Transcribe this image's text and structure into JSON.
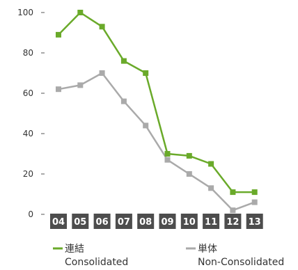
{
  "chart_data": {
    "type": "line",
    "title": "",
    "xlabel": "",
    "ylabel": "",
    "categories": [
      "04",
      "05",
      "06",
      "07",
      "08",
      "09",
      "10",
      "11",
      "12",
      "13"
    ],
    "yticks": [
      "0",
      "20",
      "40",
      "60",
      "80",
      "100"
    ],
    "ylim": [
      0,
      100
    ],
    "grid": false,
    "legend_position": "bottom",
    "series": [
      {
        "name": "連結",
        "name_en": "Consolidated",
        "color": "#6aaa2a",
        "marker": "square",
        "values": [
          89,
          100,
          93,
          76,
          70,
          30,
          29,
          25,
          11,
          11
        ]
      },
      {
        "name": "単体",
        "name_en": "Non-Consolidated",
        "color": "#aaaaaa",
        "marker": "square",
        "values": [
          62,
          64,
          70,
          56,
          44,
          27,
          20,
          13,
          2,
          6
        ]
      }
    ],
    "category_box_color": "#4d4d4d"
  }
}
